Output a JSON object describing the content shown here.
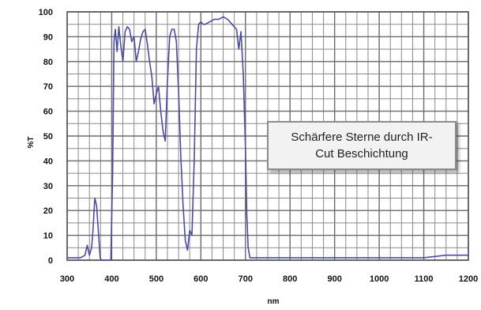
{
  "chart_data": {
    "type": "line",
    "xlabel": "nm",
    "ylabel": "%T",
    "xlim": [
      300,
      1200
    ],
    "ylim": [
      0,
      100
    ],
    "x_ticks": [
      "300",
      "400",
      "500",
      "600",
      "700",
      "800",
      "900",
      "1000",
      "1100",
      "1200"
    ],
    "y_ticks": [
      "0",
      "10",
      "20",
      "30",
      "40",
      "50",
      "60",
      "70",
      "80",
      "90",
      "100"
    ],
    "grid": true,
    "annotation": "Schärfere Sterne durch IR-Cut Beschichtung",
    "series": [
      {
        "color": "#4a4aa8",
        "x": [
          300,
          330,
          340,
          345,
          350,
          355,
          358,
          362,
          366,
          370,
          374,
          377,
          380,
          390,
          398,
          402,
          405,
          408,
          412,
          416,
          420,
          425,
          430,
          435,
          440,
          445,
          450,
          455,
          460,
          465,
          470,
          475,
          480,
          485,
          490,
          495,
          500,
          505,
          510,
          515,
          520,
          525,
          530,
          535,
          540,
          545,
          550,
          555,
          560,
          565,
          570,
          575,
          580,
          585,
          590,
          595,
          600,
          605,
          610,
          620,
          630,
          640,
          650,
          660,
          670,
          680,
          685,
          690,
          695,
          700,
          703,
          706,
          710,
          715,
          720,
          730,
          800,
          900,
          1000,
          1100,
          1150,
          1200
        ],
        "values": [
          1,
          1,
          2,
          6,
          2,
          5,
          12,
          25,
          22,
          12,
          1,
          0,
          0,
          0,
          0,
          35,
          88,
          93,
          84,
          94,
          87,
          80,
          92,
          94,
          93,
          88,
          90,
          80,
          84,
          89,
          92,
          93,
          87,
          80,
          74,
          63,
          67,
          70,
          60,
          52,
          48,
          72,
          90,
          93,
          93,
          88,
          68,
          42,
          22,
          8,
          4,
          12,
          10,
          40,
          85,
          95,
          96,
          95,
          95,
          96,
          97,
          97,
          98,
          97,
          95,
          93,
          85,
          92,
          75,
          45,
          18,
          5,
          1,
          1,
          1,
          1,
          1,
          1,
          1,
          1,
          2,
          2
        ]
      }
    ]
  }
}
